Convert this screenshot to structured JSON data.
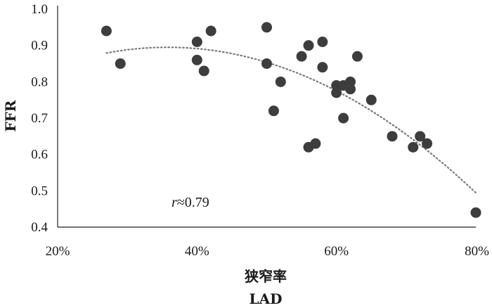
{
  "chart_data": {
    "type": "scatter",
    "title": "",
    "xlabel": "狭窄率",
    "xlabel_sub": "LAD",
    "ylabel": "FFR",
    "xlim": [
      20,
      80
    ],
    "ylim": [
      0.4,
      1.0
    ],
    "x_ticks": [
      20,
      40,
      60,
      80
    ],
    "x_tick_labels": [
      "20%",
      "40%",
      "60%",
      "80%"
    ],
    "y_ticks": [
      0.4,
      0.5,
      0.6,
      0.7,
      0.8,
      0.9,
      1.0
    ],
    "y_tick_labels": [
      "0.4",
      "0.5",
      "0.6",
      "0.7",
      "0.8",
      "0.9",
      "1.0"
    ],
    "grid": false,
    "annotation": {
      "symbol": "r",
      "text": "≈0.79"
    },
    "marker_color": "#3d3d3d",
    "trend_color": "#7a7a7a",
    "trendline": {
      "type": "polynomial",
      "order": 2,
      "x_range": [
        27,
        80
      ]
    },
    "points": [
      {
        "x": 27,
        "y": 0.94
      },
      {
        "x": 29,
        "y": 0.85
      },
      {
        "x": 40,
        "y": 0.91
      },
      {
        "x": 40,
        "y": 0.86
      },
      {
        "x": 41,
        "y": 0.83
      },
      {
        "x": 42,
        "y": 0.94
      },
      {
        "x": 50,
        "y": 0.95
      },
      {
        "x": 50,
        "y": 0.85
      },
      {
        "x": 51,
        "y": 0.72
      },
      {
        "x": 52,
        "y": 0.8
      },
      {
        "x": 55,
        "y": 0.87
      },
      {
        "x": 56,
        "y": 0.9
      },
      {
        "x": 56,
        "y": 0.62
      },
      {
        "x": 57,
        "y": 0.63
      },
      {
        "x": 58,
        "y": 0.91
      },
      {
        "x": 58,
        "y": 0.84
      },
      {
        "x": 60,
        "y": 0.79
      },
      {
        "x": 60,
        "y": 0.77
      },
      {
        "x": 61,
        "y": 0.79
      },
      {
        "x": 61,
        "y": 0.7
      },
      {
        "x": 62,
        "y": 0.8
      },
      {
        "x": 62,
        "y": 0.78
      },
      {
        "x": 63,
        "y": 0.87
      },
      {
        "x": 65,
        "y": 0.75
      },
      {
        "x": 68,
        "y": 0.65
      },
      {
        "x": 71,
        "y": 0.62
      },
      {
        "x": 72,
        "y": 0.65
      },
      {
        "x": 73,
        "y": 0.63
      },
      {
        "x": 80,
        "y": 0.44
      }
    ]
  }
}
